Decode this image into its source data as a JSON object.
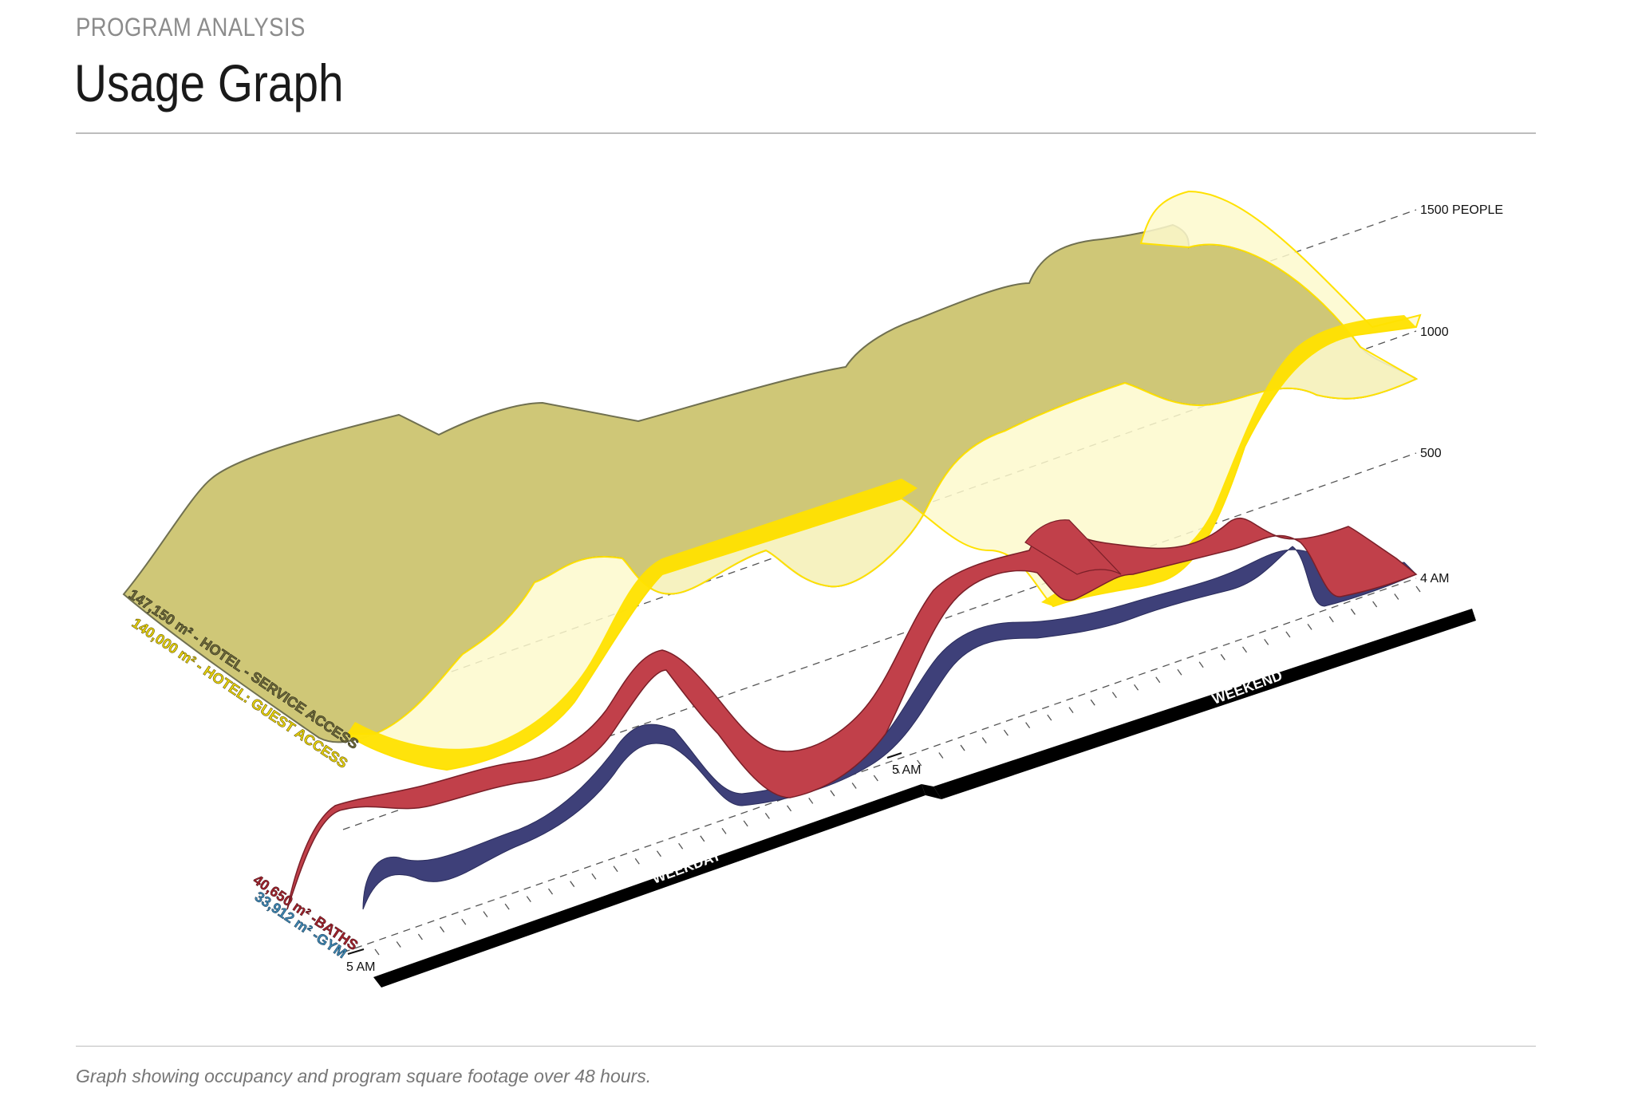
{
  "header": {
    "eyebrow": "PROGRAM ANALYSIS",
    "title": "Usage Graph"
  },
  "caption": "Graph showing occupancy and program square footage over 48 hours.",
  "axis": {
    "scale_labels": [
      "1500 PEOPLE",
      "1000",
      "500",
      "4 AM"
    ],
    "time_labels": [
      "5 AM",
      "5 AM"
    ],
    "period_labels": [
      "WEEKDAY",
      "WEEKEND"
    ]
  },
  "programs": [
    {
      "label": "147,150 m² - HOTEL - SERVICE ACCESS",
      "color": "#cfc777"
    },
    {
      "label": "140,000 m² - HOTEL: GUEST ACCESS",
      "color": "#ffe100"
    },
    {
      "label": "40,650 m² -BATHS",
      "color": "#c1404a"
    },
    {
      "label": "33,912 m² -GYM",
      "color": "#3e4079"
    }
  ],
  "colors": {
    "service_fill": "#cfc777",
    "guest_fill": "#fdf9cd",
    "guest_edge": "#ffe100",
    "baths_fill": "#c1404a",
    "gym_fill": "#3e4079",
    "timeline_bar": "#000000"
  }
}
